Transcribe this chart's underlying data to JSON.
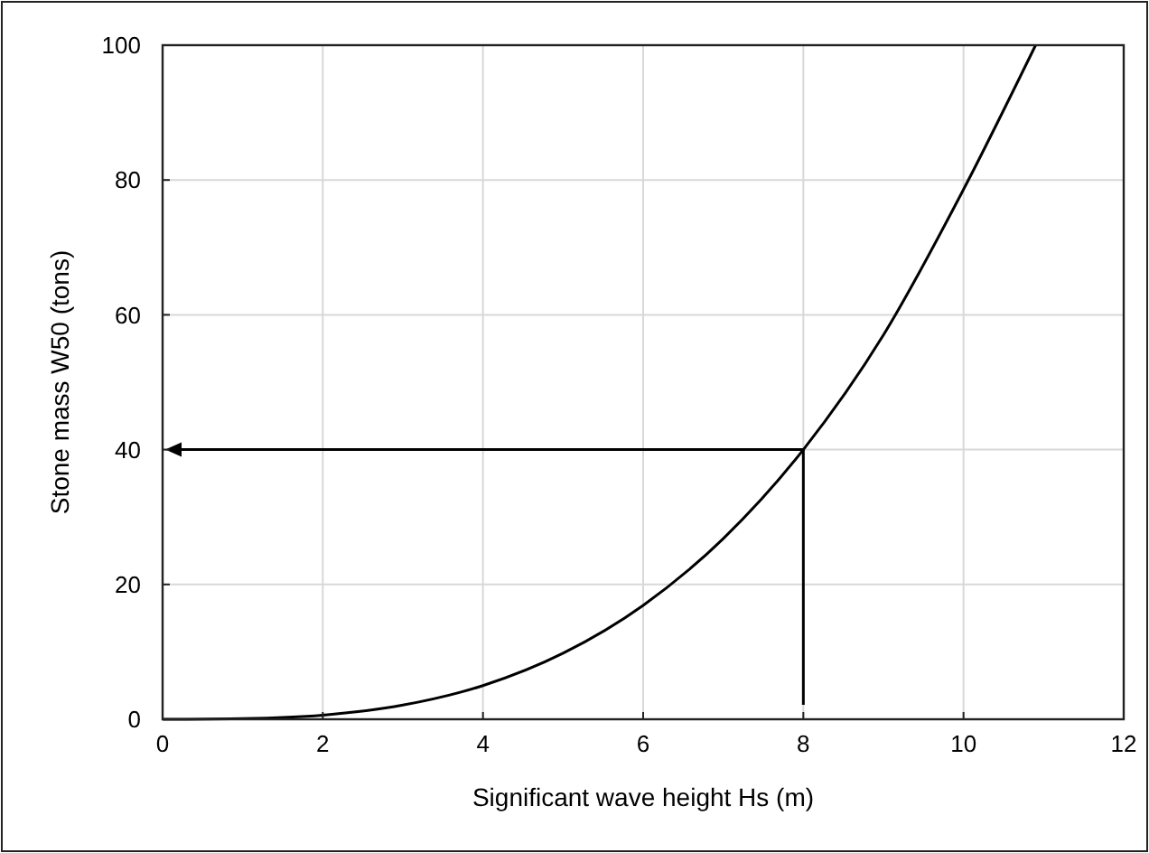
{
  "chart_data": {
    "type": "line",
    "xlabel": "Significant wave height Hs (m)",
    "ylabel": "Stone mass W50 (tons)",
    "xlim": [
      0,
      12
    ],
    "ylim": [
      0,
      100
    ],
    "xticks": [
      0,
      2,
      4,
      6,
      8,
      10,
      12
    ],
    "yticks": [
      0,
      20,
      40,
      60,
      80,
      100
    ],
    "grid": true,
    "marker": "none",
    "line_style": "solid",
    "ref_lines": [
      {
        "axis": "x",
        "value": 8,
        "color": "#000000"
      },
      {
        "axis": "y",
        "value": 40,
        "color": "#000000"
      }
    ],
    "series": [
      {
        "color": "#000000",
        "x": [
          0,
          1,
          2,
          3,
          4,
          5,
          6,
          7,
          8,
          9,
          10,
          10.9
        ],
        "values": [
          0,
          0.1,
          0.6,
          2.1,
          5,
          9.8,
          16.9,
          26.8,
          40,
          57,
          78.6,
          100
        ]
      }
    ]
  }
}
